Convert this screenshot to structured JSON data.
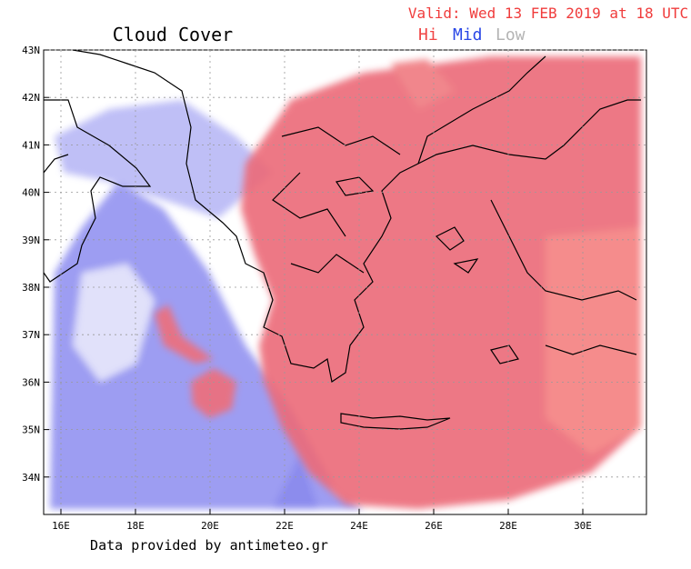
{
  "header": {
    "title": "Cloud Cover",
    "valid": "Valid: Wed 13 FEB 2019 at 18 UTC",
    "legend": [
      "Hi",
      "Mid",
      "Low"
    ]
  },
  "map": {
    "lat_labels": [
      "43N",
      "42N",
      "41N",
      "40N",
      "39N",
      "38N",
      "37N",
      "36N",
      "35N",
      "34N"
    ],
    "lon_labels": [
      "16E",
      "18E",
      "20E",
      "22E",
      "24E",
      "26E",
      "28E",
      "30E"
    ]
  },
  "footer": "Data provided by antimeteo.gr"
}
